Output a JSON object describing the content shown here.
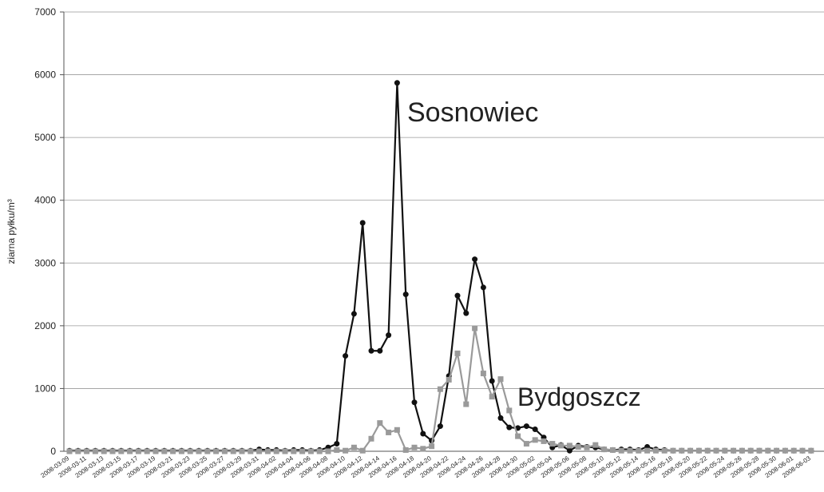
{
  "chart_data": {
    "type": "line",
    "y_label": "ziarna pyłku/m³",
    "categories": [
      "2008-03-09",
      null,
      "2008-03-11",
      null,
      "2008-03-13",
      null,
      "2008-03-15",
      null,
      "2008-03-17",
      null,
      "2008-03-19",
      null,
      "2008-03-21",
      null,
      "2008-03-23",
      null,
      "2008-03-25",
      null,
      "2008-03-27",
      null,
      "2008-03-29",
      null,
      "2008-03-31",
      null,
      "2008-04-02",
      null,
      "2008-04-04",
      null,
      "2008-04-06",
      null,
      "2008-04-08",
      null,
      "2008-04-10",
      null,
      "2008-04-12",
      null,
      "2008-04-14",
      null,
      "2008-04-16",
      null,
      "2008-04-18",
      null,
      "2008-04-20",
      null,
      "2008-04-22",
      null,
      "2008-04-24",
      null,
      "2008-04-26",
      null,
      "2008-04-28",
      null,
      "2008-04-30",
      null,
      "2008-05-02",
      null,
      "2008-05-04",
      null,
      "2008-05-06",
      null,
      "2008-05-08",
      null,
      "2008-05-10",
      null,
      "2008-05-12",
      null,
      "2008-05-14",
      null,
      "2008-05-16",
      null,
      "2008-05-18",
      null,
      "2008-05-20",
      null,
      "2008-05-22",
      null,
      "2008-05-24",
      null,
      "2008-05-26",
      null,
      "2008-05-28",
      null,
      "2008-05-30",
      null,
      "2008-06-01",
      null,
      "2008-06-03"
    ],
    "series": [
      {
        "name": "Sosnowiec",
        "color": "#111111",
        "marker": "circle",
        "values": [
          10,
          10,
          10,
          10,
          10,
          10,
          10,
          10,
          10,
          10,
          10,
          10,
          10,
          10,
          10,
          10,
          10,
          10,
          10,
          10,
          10,
          10,
          30,
          20,
          20,
          10,
          20,
          20,
          10,
          20,
          60,
          120,
          1520,
          2190,
          3640,
          1600,
          1600,
          1850,
          5870,
          2500,
          780,
          280,
          170,
          400,
          1200,
          2480,
          2200,
          3060,
          2610,
          1120,
          530,
          380,
          370,
          400,
          350,
          220,
          60,
          100,
          10,
          90,
          70,
          60,
          30,
          20,
          30,
          30,
          20,
          70,
          30,
          20,
          10,
          10,
          10,
          10,
          10,
          10,
          10,
          10,
          10,
          10,
          10,
          10,
          10,
          10,
          10,
          10,
          10
        ]
      },
      {
        "name": "Bydgoszcz",
        "color": "#9a9a9a",
        "marker": "square",
        "values": [
          0,
          0,
          0,
          0,
          0,
          0,
          0,
          0,
          0,
          0,
          0,
          0,
          0,
          0,
          0,
          0,
          0,
          0,
          0,
          0,
          0,
          0,
          0,
          0,
          0,
          0,
          0,
          0,
          0,
          0,
          0,
          20,
          10,
          60,
          10,
          200,
          450,
          300,
          340,
          20,
          60,
          40,
          80,
          990,
          1140,
          1560,
          750,
          1960,
          1240,
          870,
          1150,
          650,
          240,
          120,
          180,
          160,
          120,
          90,
          90,
          70,
          60,
          100,
          30,
          20,
          10,
          10,
          10,
          10,
          10,
          10,
          10,
          10,
          10,
          10,
          10,
          10,
          10,
          10,
          10,
          10,
          10,
          10,
          10,
          10,
          10,
          10,
          10
        ]
      }
    ],
    "ylim": [
      0,
      7000
    ],
    "yticks": [
      0,
      1000,
      2000,
      3000,
      4000,
      5000,
      6000,
      7000
    ],
    "grid": true
  }
}
